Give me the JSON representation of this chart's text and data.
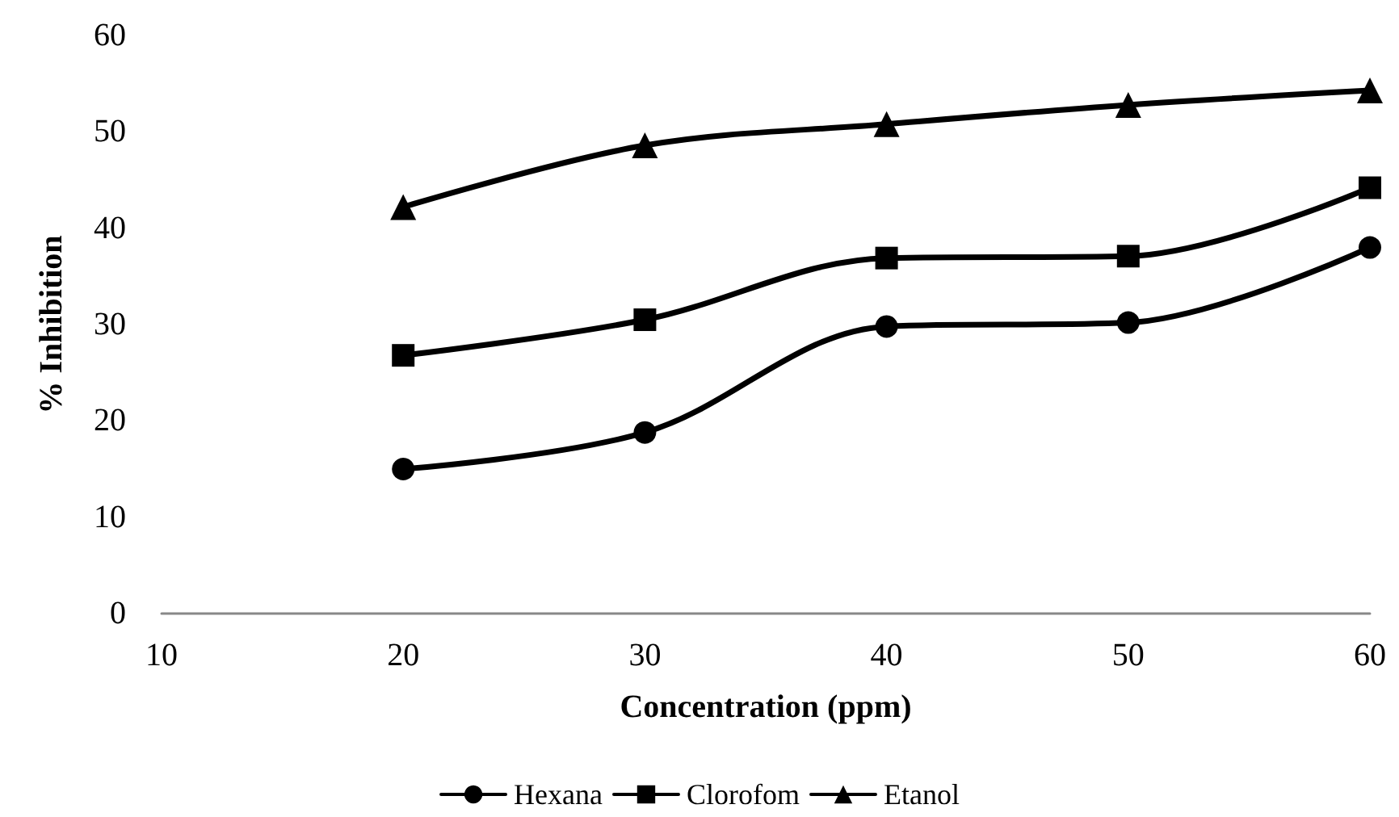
{
  "chart_data": {
    "type": "line",
    "xlabel": "Concentration (ppm)",
    "ylabel": "% Inhibition",
    "x": [
      20,
      30,
      40,
      50,
      60
    ],
    "series": [
      {
        "name": "Hexana",
        "color": "#000000",
        "marker": "circle",
        "values": [
          15,
          18.8,
          29.8,
          30.2,
          38
        ]
      },
      {
        "name": "Clorofom",
        "color": "#000000",
        "marker": "square",
        "values": [
          26.8,
          30.5,
          36.9,
          37.1,
          44.2
        ]
      },
      {
        "name": "Etanol",
        "color": "#000000",
        "marker": "triangle",
        "values": [
          42.2,
          48.6,
          50.8,
          52.8,
          54.3
        ]
      }
    ],
    "xlim": [
      10,
      60
    ],
    "xticks": [
      10,
      20,
      30,
      40,
      50,
      60
    ],
    "ylim": [
      0,
      60
    ],
    "yticks": [
      0,
      10,
      20,
      30,
      40,
      50,
      60
    ],
    "grid": false,
    "legend": "bottom",
    "line_style": "solid"
  }
}
